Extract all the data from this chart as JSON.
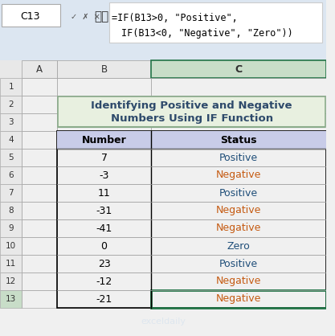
{
  "title_line1": "Identifying Positive and Negative",
  "title_line2": "Numbers Using IF Function",
  "title_bg": "#e8f0e0",
  "title_border": "#8aab8a",
  "title_color": "#2e4a6b",
  "formula_bar_cell": "C13",
  "formula_text": "=IF(B13>0, \"Positive\",\n    IF(B13<0, \"Negative\", \"Zero\"))",
  "col_headers": [
    "Number",
    "Status"
  ],
  "header_bg": "#c8cce8",
  "numbers": [
    7,
    -3,
    11,
    -31,
    -41,
    0,
    23,
    -12,
    -21
  ],
  "statuses": [
    "Positive",
    "Negative",
    "Positive",
    "Negative",
    "Negative",
    "Zero",
    "Positive",
    "Negative",
    "Negative"
  ],
  "positive_color": "#1f4e79",
  "negative_color": "#c55a11",
  "zero_color": "#1f4e79",
  "row_numbers": [
    1,
    2,
    3,
    4,
    5,
    6,
    7,
    8,
    9,
    10,
    11,
    12,
    13
  ],
  "col_labels": [
    "A",
    "B",
    "C"
  ],
  "bg_color": "#ffffff",
  "spreadsheet_bg": "#f0f0f0",
  "active_cell_color": "#217346",
  "formula_bg": "#ffffff",
  "toolbar_bg": "#d6e4f0"
}
